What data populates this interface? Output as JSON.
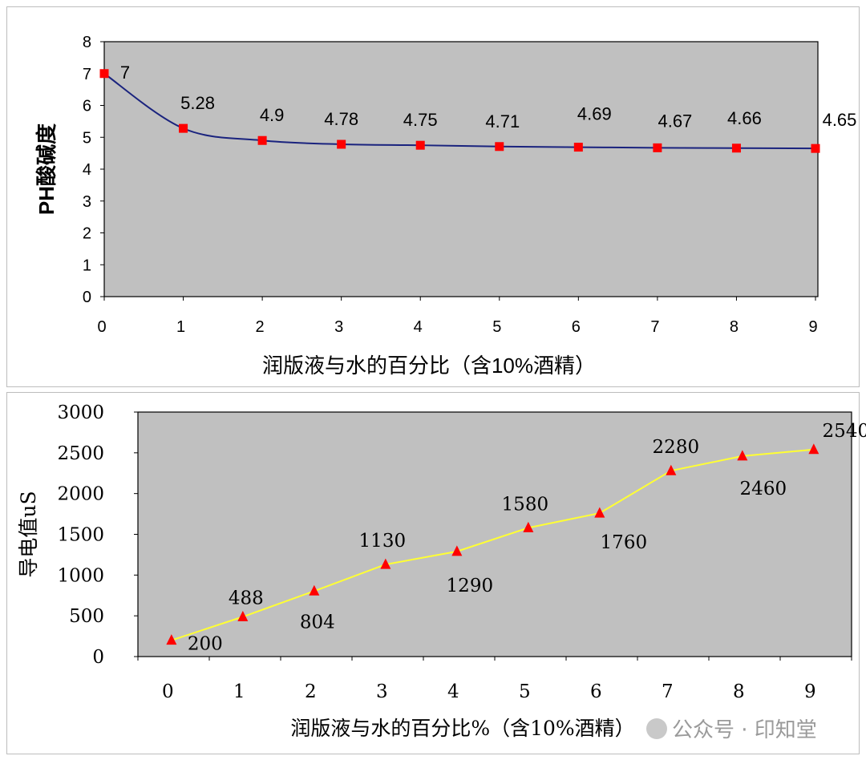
{
  "chart_data": [
    {
      "type": "line",
      "title": "",
      "xlabel": "润版液与水的百分比（含10%酒精）",
      "ylabel": "PH酸碱度",
      "x": [
        0,
        1,
        2,
        3,
        4,
        5,
        6,
        7,
        8,
        9
      ],
      "x_ticks": [
        "0",
        "1",
        "2",
        "3",
        "4",
        "5",
        "6",
        "7",
        "8",
        "9"
      ],
      "y_ticks": [
        "0",
        "1",
        "2",
        "3",
        "4",
        "5",
        "6",
        "7",
        "8"
      ],
      "ylim": [
        0,
        8
      ],
      "series": [
        {
          "values": [
            7,
            5.28,
            4.9,
            4.78,
            4.75,
            4.71,
            4.69,
            4.67,
            4.66,
            4.65
          ],
          "labels": [
            "7",
            "5.28",
            "4.9",
            "4.78",
            "4.75",
            "4.71",
            "4.69",
            "4.67",
            "4.66",
            "4.65"
          ],
          "line_color": "#1a237e",
          "marker": "square",
          "marker_color": "#ff0000"
        }
      ],
      "plot_background": "#c0c0c0",
      "grid": false
    },
    {
      "type": "line",
      "title": "",
      "xlabel": "润版液与水的百分比%（含10%酒精）",
      "ylabel": "导电值uS",
      "x": [
        0,
        1,
        2,
        3,
        4,
        5,
        6,
        7,
        8,
        9
      ],
      "x_ticks": [
        "0",
        "1",
        "2",
        "3",
        "4",
        "5",
        "6",
        "7",
        "8",
        "9"
      ],
      "y_ticks": [
        "0",
        "500",
        "1000",
        "1500",
        "2000",
        "2500",
        "3000"
      ],
      "ylim": [
        0,
        3000
      ],
      "series": [
        {
          "values": [
            200,
            488,
            804,
            1130,
            1290,
            1580,
            1760,
            2280,
            2460,
            2540
          ],
          "labels": [
            "200",
            "488",
            "804",
            "1130",
            "1290",
            "1580",
            "1760",
            "2280",
            "2460",
            "2540"
          ],
          "line_color": "#ffff33",
          "marker": "triangle",
          "marker_color": "#ff0000"
        }
      ],
      "plot_background": "#c0c0c0",
      "grid": false
    }
  ],
  "watermark": {
    "text": "公众号 · 印知堂"
  }
}
